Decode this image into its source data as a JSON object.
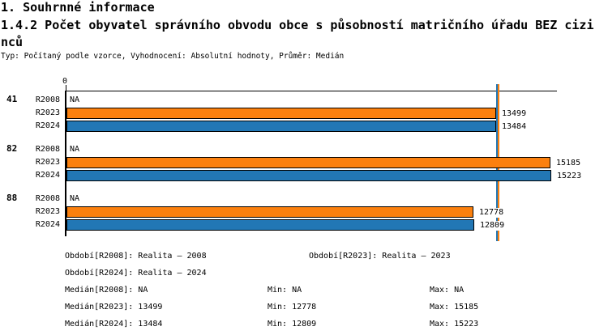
{
  "header": {
    "title": "1. Souhrnné informace",
    "subtitle": "1.4.2 Počet obyvatel správního obvodu obce s působností matričního úřadu BEZ cizinců",
    "meta": "Typ: Počítaný podle vzorce, Vyhodnocení: Absolutní hodnoty, Průměr: Medián"
  },
  "chart_data": {
    "type": "bar",
    "orientation": "horizontal",
    "title": "1.4.2 Počet obyvatel správního obvodu obce s působností matričního úřadu BEZ cizinců",
    "categories": [
      "41",
      "82",
      "88"
    ],
    "series": [
      {
        "name": "R2008",
        "color": "#ffffff",
        "values": [
          null,
          null,
          null
        ]
      },
      {
        "name": "R2023",
        "color": "#FB800E",
        "values": [
          13499,
          15185,
          12778
        ]
      },
      {
        "name": "R2024",
        "color": "#2277B5",
        "values": [
          13484,
          15223,
          12809
        ]
      }
    ],
    "na_text": "NA",
    "axis": {
      "origin_label": "0"
    },
    "xlim": [
      0,
      15400
    ],
    "grid": false,
    "value_labels": true,
    "medians": [
      {
        "series": "R2023",
        "value": 13499,
        "color": "#FB800E"
      },
      {
        "series": "R2024",
        "value": 13484,
        "color": "#2277B5"
      }
    ]
  },
  "legend": {
    "periods": [
      "Období[R2008]: Realita – 2008",
      "Období[R2023]: Realita – 2023",
      "Období[R2024]: Realita – 2024"
    ],
    "medians": [
      "Medián[R2008]: NA",
      "Medián[R2023]: 13499",
      "Medián[R2024]: 13484"
    ],
    "mins": [
      "Min: NA",
      "Min: 12778",
      "Min: 12809"
    ],
    "maxs": [
      "Max: NA",
      "Max: 15185",
      "Max: 15223"
    ]
  }
}
